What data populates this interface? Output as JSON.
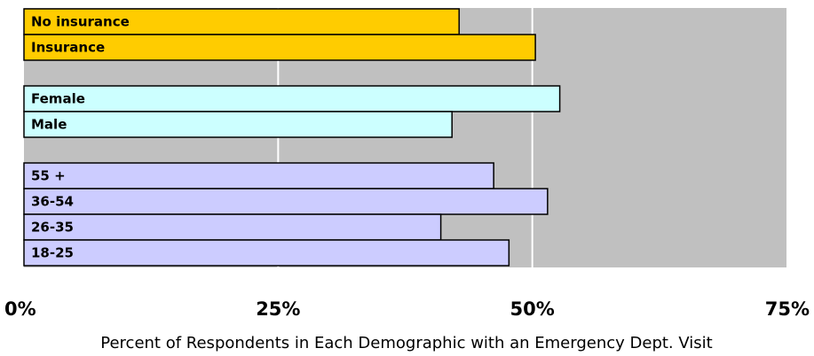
{
  "chart_data": {
    "type": "bar",
    "orientation": "horizontal",
    "title": "",
    "xlabel": "Percent of Respondents in Each Demographic with an Emergency Dept. Visit",
    "ylabel": "",
    "xlim": [
      0,
      75
    ],
    "xticks": [
      "0%",
      "25%",
      "50%",
      "75%"
    ],
    "grid": true,
    "legend": "none",
    "plot_background": "#c0c0c0",
    "groups": [
      {
        "color": "#ffcc00",
        "bars": [
          {
            "label": "No insurance",
            "value": 42.8
          },
          {
            "label": "Insurance",
            "value": 50.3
          }
        ]
      },
      {
        "color": "#ccffff",
        "bars": [
          {
            "label": "Female",
            "value": 52.7
          },
          {
            "label": "Male",
            "value": 42.1
          }
        ]
      },
      {
        "color": "#ccccff",
        "bars": [
          {
            "label": "55 +",
            "value": 46.2
          },
          {
            "label": "36-54",
            "value": 51.5
          },
          {
            "label": "26-35",
            "value": 41.0
          },
          {
            "label": "18-25",
            "value": 47.7
          }
        ]
      }
    ]
  }
}
